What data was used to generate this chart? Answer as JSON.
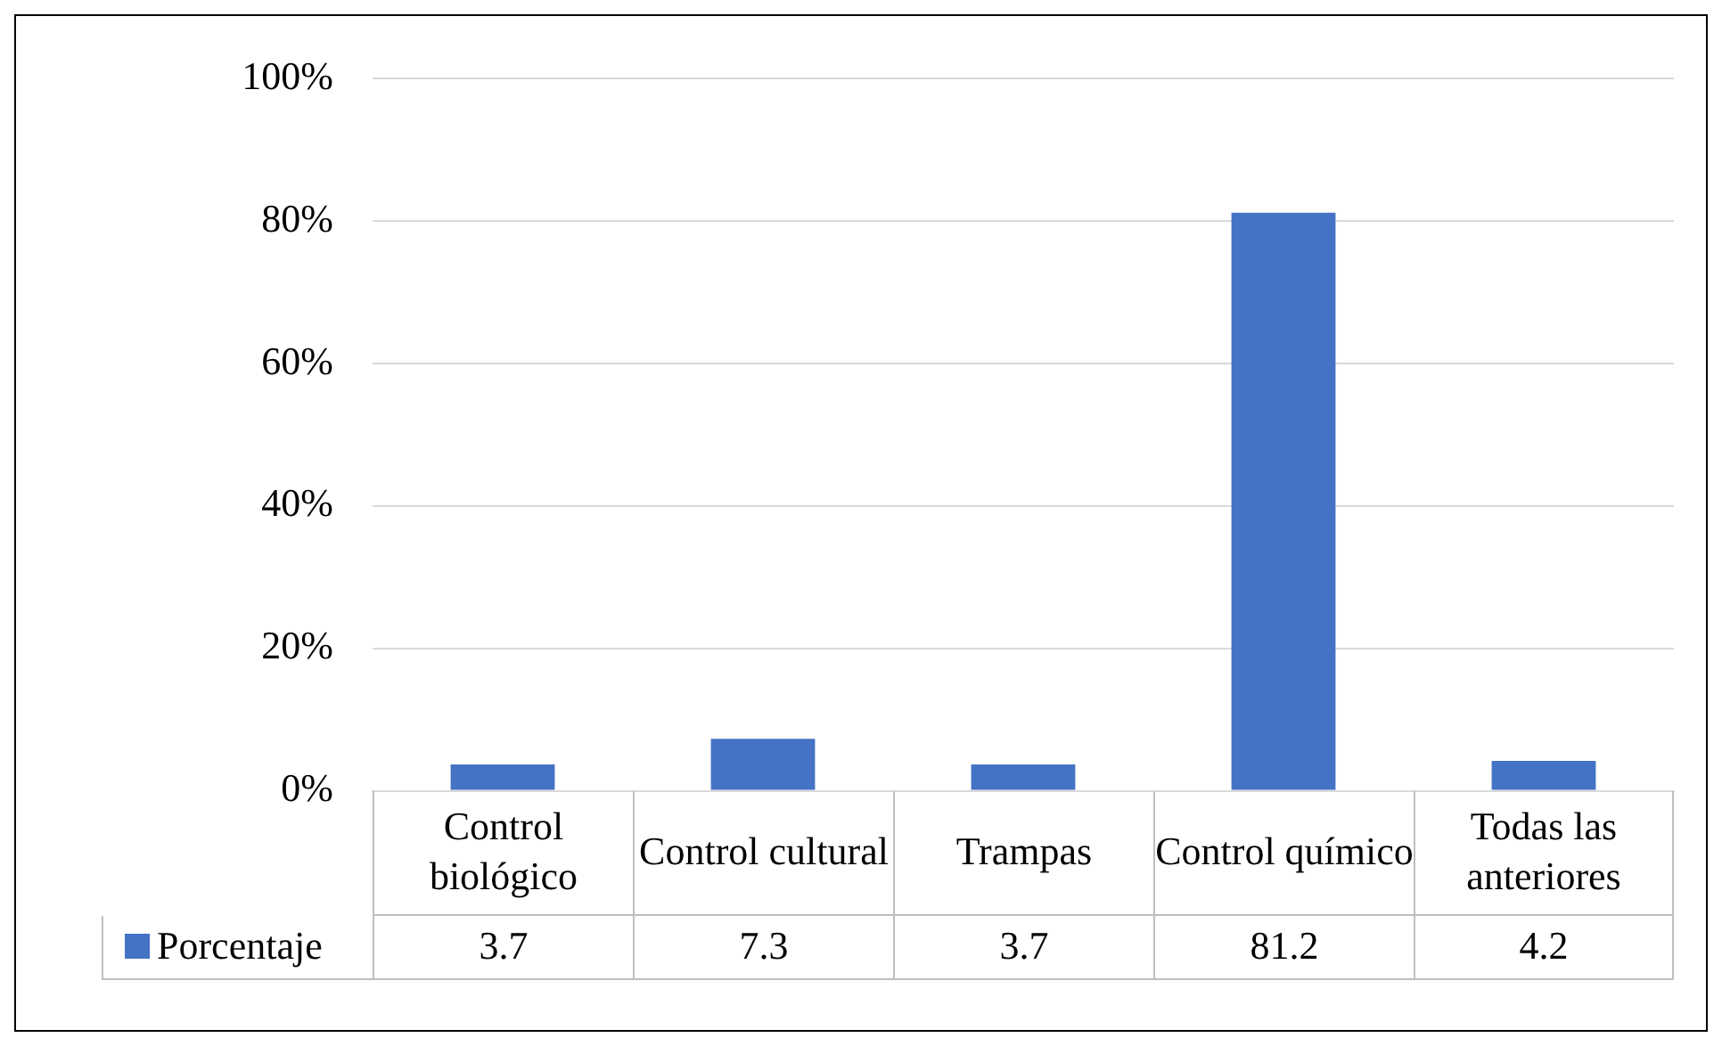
{
  "chart_data": {
    "type": "bar",
    "categories": [
      "Control biológico",
      "Control cultural",
      "Trampas",
      "Control químico",
      "Todas las anteriores"
    ],
    "series": [
      {
        "name": "Porcentaje",
        "color": "#4472c4",
        "values": [
          3.7,
          7.3,
          3.7,
          81.2,
          4.2
        ]
      }
    ],
    "ylim": [
      0,
      100
    ],
    "yticks": [
      {
        "value": 0,
        "label": "0%"
      },
      {
        "value": 20,
        "label": "20%"
      },
      {
        "value": 40,
        "label": "40%"
      },
      {
        "value": 60,
        "label": "60%"
      },
      {
        "value": 80,
        "label": "80%"
      },
      {
        "value": 100,
        "label": "100%"
      }
    ],
    "grid": "y",
    "legend": "bottom",
    "data_labels": true
  }
}
